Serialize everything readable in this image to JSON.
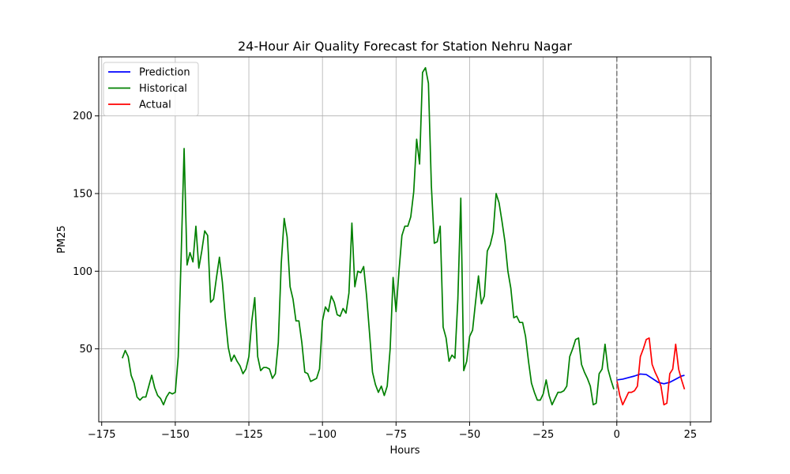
{
  "chart_data": {
    "type": "line",
    "title": "24-Hour Air Quality Forecast for Station Nehru Nagar",
    "xlabel": "Hours",
    "ylabel": "PM25",
    "xlim": [
      -176,
      32
    ],
    "ylim": [
      3,
      238
    ],
    "x_ticks": [
      -175,
      -150,
      -125,
      -100,
      -75,
      -50,
      -25,
      0,
      25
    ],
    "x_tick_labels": [
      "−175",
      "−150",
      "−125",
      "−100",
      "−75",
      "−50",
      "−25",
      "0",
      "25"
    ],
    "y_ticks": [
      50,
      100,
      150,
      200
    ],
    "y_tick_labels": [
      "50",
      "100",
      "150",
      "200"
    ],
    "grid": true,
    "legend_position": "top-left",
    "vline": {
      "x": 0,
      "color": "#808080",
      "style": "dashed"
    },
    "series": [
      {
        "name": "Prediction",
        "color": "#0000ff",
        "x": [
          0,
          2,
          4,
          6,
          8,
          10,
          12,
          14,
          16,
          18,
          20,
          22,
          23
        ],
        "y": [
          30,
          30.5,
          31.5,
          32.5,
          33.8,
          33.5,
          31,
          28.5,
          27.5,
          28.5,
          30.5,
          32.5,
          33
        ]
      },
      {
        "name": "Historical",
        "color": "#008000",
        "x": [
          -168,
          -167,
          -166,
          -165,
          -164,
          -163,
          -162,
          -161,
          -160,
          -159,
          -158,
          -157,
          -156,
          -155,
          -154,
          -153,
          -152,
          -151,
          -150,
          -149,
          -148,
          -147,
          -146,
          -145,
          -144,
          -143,
          -142,
          -141,
          -140,
          -139,
          -138,
          -137,
          -136,
          -135,
          -134,
          -133,
          -132,
          -131,
          -130,
          -129,
          -128,
          -127,
          -126,
          -125,
          -124,
          -123,
          -122,
          -121,
          -120,
          -119,
          -118,
          -117,
          -116,
          -115,
          -114,
          -113,
          -112,
          -111,
          -110,
          -109,
          -108,
          -107,
          -106,
          -105,
          -104,
          -103,
          -102,
          -101,
          -100,
          -99,
          -98,
          -97,
          -96,
          -95,
          -94,
          -93,
          -92,
          -91,
          -90,
          -89,
          -88,
          -87,
          -86,
          -85,
          -84,
          -83,
          -82,
          -81,
          -80,
          -79,
          -78,
          -77,
          -76,
          -75,
          -74,
          -73,
          -72,
          -71,
          -70,
          -69,
          -68,
          -67,
          -66,
          -65,
          -64,
          -63,
          -62,
          -61,
          -60,
          -59,
          -58,
          -57,
          -56,
          -55,
          -54,
          -53,
          -52,
          -51,
          -50,
          -49,
          -48,
          -47,
          -46,
          -45,
          -44,
          -43,
          -42,
          -41,
          -40,
          -39,
          -38,
          -37,
          -36,
          -35,
          -34,
          -33,
          -32,
          -31,
          -30,
          -29,
          -28,
          -27,
          -26,
          -25,
          -24,
          -23,
          -22,
          -21,
          -20,
          -19,
          -18,
          -17,
          -16,
          -15,
          -14,
          -13,
          -12,
          -11,
          -10,
          -9,
          -8,
          -7,
          -6,
          -5,
          -4,
          -3,
          -2,
          -1
        ],
        "y": [
          44,
          49,
          45,
          33,
          28,
          19,
          17,
          19,
          19,
          26,
          33,
          25,
          20,
          18,
          14,
          19,
          22,
          21,
          22,
          45,
          110,
          179,
          104,
          112,
          106,
          129,
          102,
          113,
          126,
          123,
          80,
          82,
          96,
          109,
          93,
          70,
          51,
          42,
          46,
          42,
          39,
          34,
          37,
          45,
          68,
          83,
          45,
          36,
          38,
          38,
          37,
          31,
          34,
          54,
          105,
          134,
          122,
          90,
          82,
          68,
          68,
          54,
          35,
          34,
          29,
          30,
          31,
          37,
          68,
          77,
          74,
          84,
          80,
          72,
          71,
          76,
          73,
          86,
          131,
          90,
          100,
          99,
          103,
          84,
          60,
          35,
          27,
          22,
          26,
          20,
          26,
          50,
          96,
          74,
          100,
          123,
          129,
          129,
          135,
          151,
          185,
          169,
          228,
          231,
          221,
          155,
          118,
          119,
          129,
          64,
          57,
          42,
          46,
          44,
          82,
          147,
          36,
          42,
          58,
          62,
          80,
          97,
          79,
          84,
          113,
          117,
          125,
          150,
          144,
          132,
          119,
          100,
          89,
          70,
          71,
          67,
          67,
          58,
          42,
          28,
          22,
          17,
          17,
          21,
          30,
          20,
          14,
          18,
          22,
          22,
          23,
          26,
          45,
          50,
          56,
          57,
          40,
          35,
          31,
          26,
          14,
          15,
          34,
          37,
          53,
          37,
          30,
          24
        ]
      },
      {
        "name": "Actual",
        "color": "#ff0000",
        "x": [
          0,
          1,
          2,
          3,
          4,
          5,
          6,
          7,
          8,
          9,
          10,
          11,
          12,
          13,
          14,
          15,
          16,
          17,
          18,
          19,
          20,
          21,
          22,
          23
        ],
        "y": [
          30,
          20,
          14,
          18,
          22,
          22,
          23,
          26,
          45,
          50,
          56,
          57,
          40,
          35,
          31,
          26,
          14,
          15,
          34,
          37,
          53,
          37,
          30,
          24
        ]
      }
    ]
  }
}
